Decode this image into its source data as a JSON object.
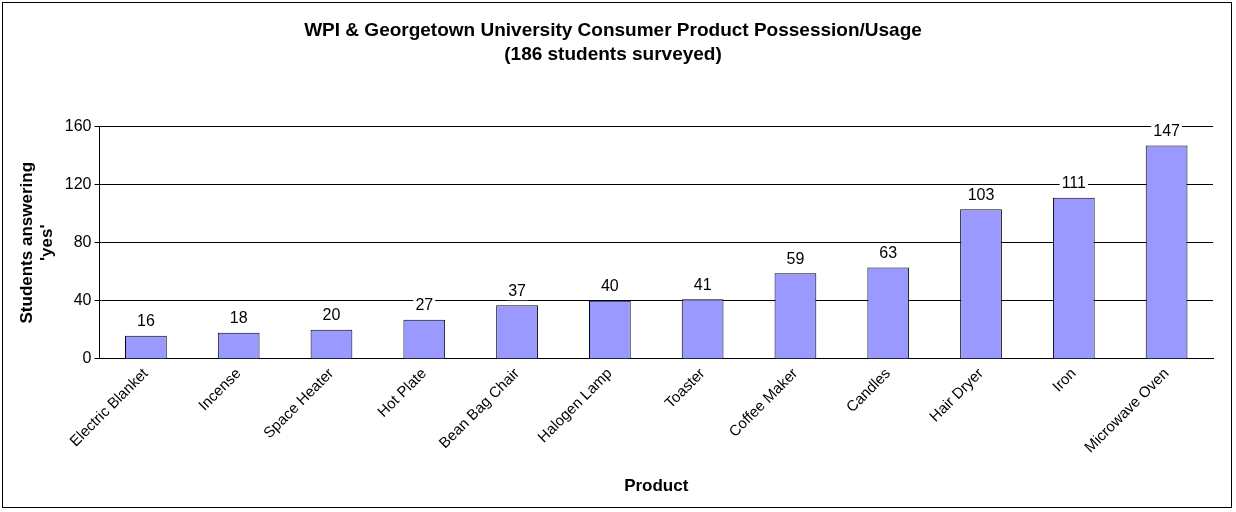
{
  "chart_data": {
    "type": "bar",
    "title": "WPI & Georgetown University Consumer Product Possession/Usage",
    "subtitle": "(186 students surveyed)",
    "xlabel": "Product",
    "ylabel": "Students answering 'yes'",
    "categories": [
      "Electric Blanket",
      "Incense",
      "Space Heater",
      "Hot Plate",
      "Bean Bag Chair",
      "Halogen Lamp",
      "Toaster",
      "Coffee Maker",
      "Candles",
      "Hair Dryer",
      "Iron",
      "Microwave Oven"
    ],
    "values": [
      16,
      18,
      20,
      27,
      37,
      40,
      41,
      59,
      63,
      103,
      111,
      147
    ],
    "color": "#9999ff",
    "ylim": [
      0,
      160
    ],
    "yticks": [
      0,
      40,
      80,
      120,
      160
    ],
    "grid": "y",
    "legend": false,
    "data_labels": true
  }
}
